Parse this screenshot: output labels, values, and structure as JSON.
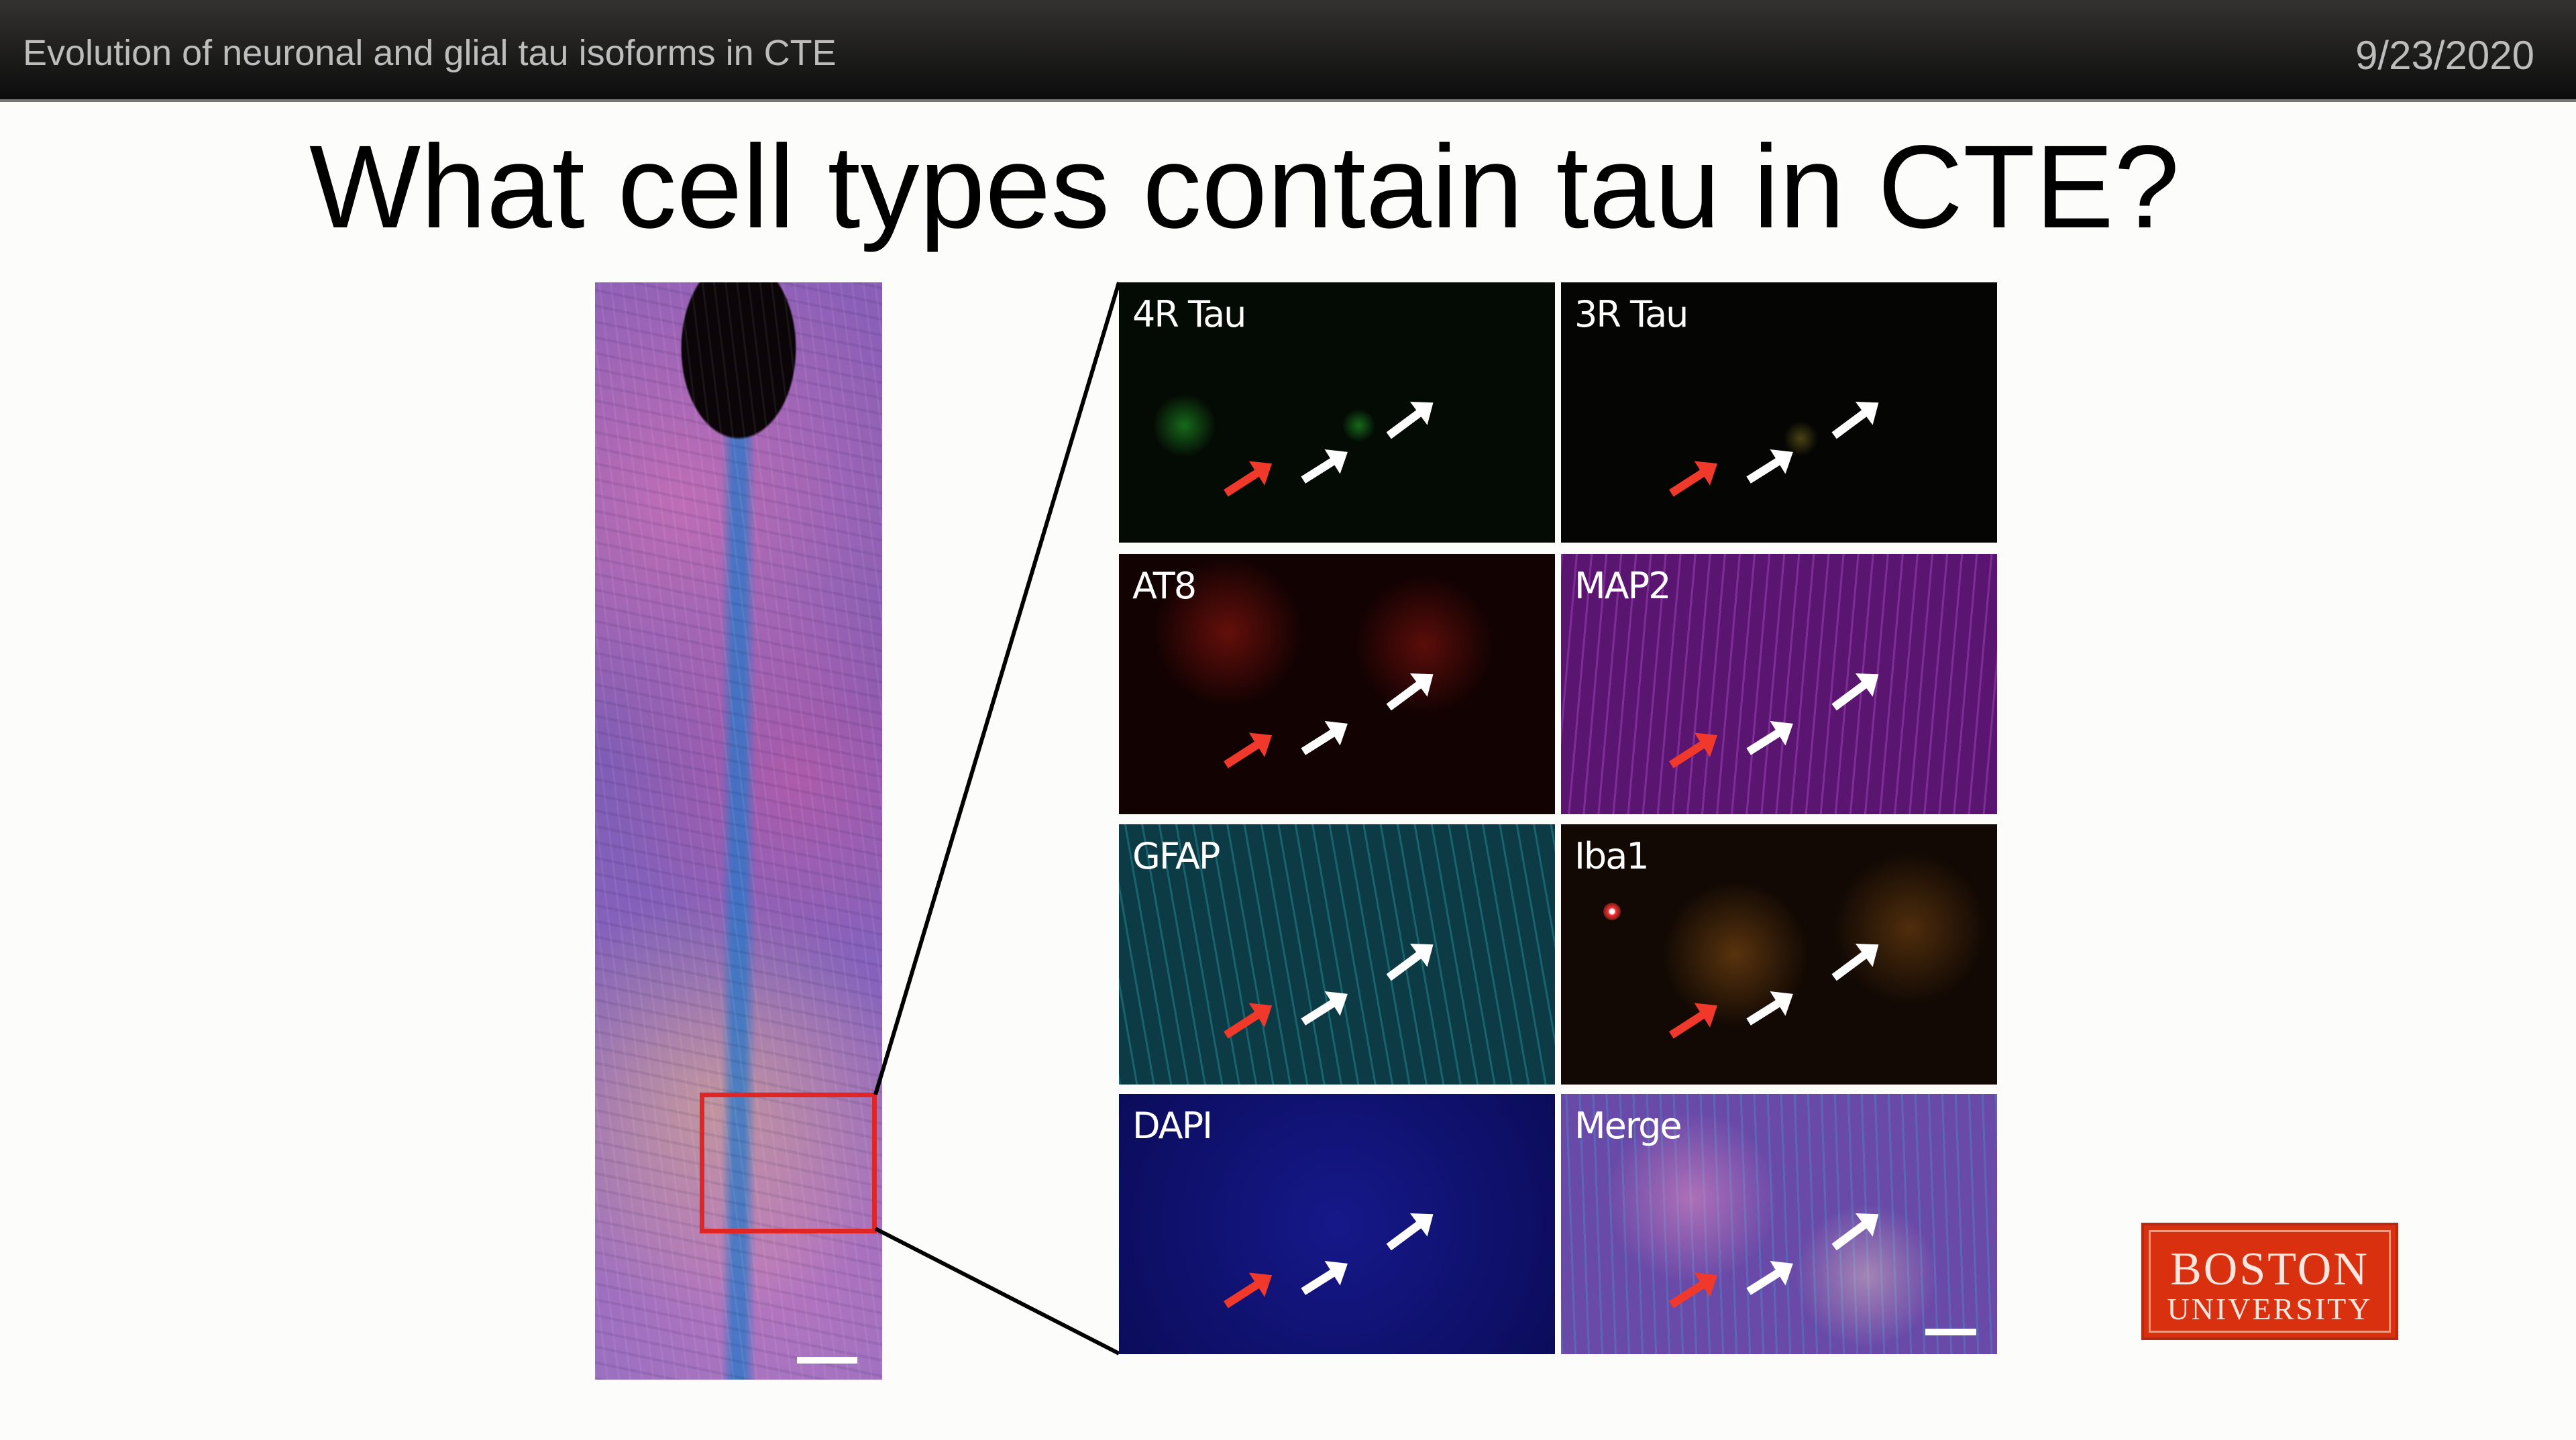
{
  "header": {
    "title": "Evolution of neuronal and glial tau isoforms in CTE",
    "date": "9/23/2020"
  },
  "slide": {
    "title": "What cell types contain tau in CTE?",
    "panels": [
      {
        "label": "4R Tau",
        "color": "#2fd13a"
      },
      {
        "label": "3R Tau",
        "color": "#c9b437"
      },
      {
        "label": "AT8",
        "color": "#e8281c"
      },
      {
        "label": "MAP2",
        "color": "#b23fd0"
      },
      {
        "label": "GFAP",
        "color": "#1fa3b3"
      },
      {
        "label": "Iba1",
        "color": "#e8901c"
      },
      {
        "label": "DAPI",
        "color": "#1a1ca0"
      },
      {
        "label": "Merge",
        "color": "#8a5fc0"
      }
    ],
    "arrow_colors": {
      "red": "#f0392b",
      "white": "#ffffff"
    },
    "roi_color": "#e02525"
  },
  "logo": {
    "line1": "BOSTON",
    "line2": "UNIVERSITY",
    "color": "#d9300f"
  }
}
